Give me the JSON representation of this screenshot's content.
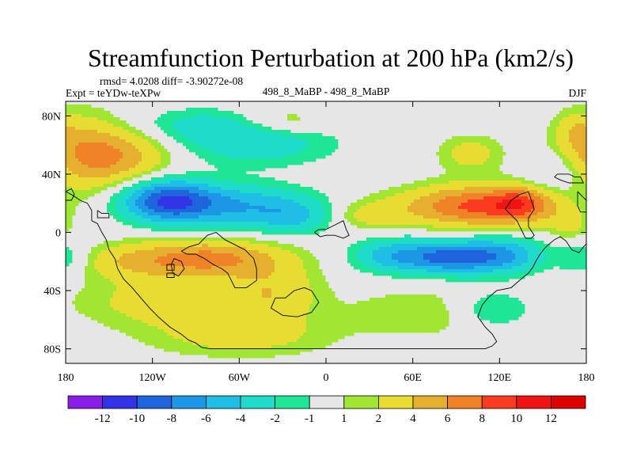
{
  "chart_data": {
    "type": "heatmap",
    "title": "Streamfunction Perturbation at 200 hPa (km2/s)",
    "stats_text": "rmsd= 4.0208 diff= -3.90272e-08",
    "experiment": "Expt = teYDw-teXPw",
    "subtitle": "498_8_MaBP - 498_8_MaBP",
    "season": "DJF",
    "xlabel": "",
    "ylabel": "",
    "x_range": [
      -180,
      180
    ],
    "y_range": [
      -90,
      90
    ],
    "x_ticks": [
      {
        "value": -180,
        "label": "180"
      },
      {
        "value": -120,
        "label": "120W"
      },
      {
        "value": -60,
        "label": "60W"
      },
      {
        "value": 0,
        "label": "0"
      },
      {
        "value": 60,
        "label": "60E"
      },
      {
        "value": 120,
        "label": "120E"
      },
      {
        "value": 180,
        "label": "180"
      }
    ],
    "y_ticks": [
      {
        "value": 80,
        "label": "80N"
      },
      {
        "value": 40,
        "label": "40N"
      },
      {
        "value": 0,
        "label": "0"
      },
      {
        "value": -40,
        "label": "40S"
      },
      {
        "value": -80,
        "label": "80S"
      }
    ],
    "contour_levels": [
      -12,
      -10,
      -8,
      -6,
      -4,
      -2,
      -1,
      1,
      2,
      4,
      6,
      8,
      10,
      12
    ],
    "level_labels": [
      "-12",
      "-10",
      "-8",
      "-6",
      "-4",
      "-2",
      "-1",
      "1",
      "2",
      "4",
      "6",
      "8",
      "10",
      "12"
    ],
    "colors": [
      "#8a1ee6",
      "#3232e6",
      "#1e64dc",
      "#1e96e6",
      "#1ebee6",
      "#1edcc8",
      "#1ee696",
      "#e6e6e6",
      "#a0e632",
      "#e6dc32",
      "#e6af2d",
      "#f08228",
      "#fa3c1e",
      "#f01414",
      "#dc0000"
    ],
    "features": [
      {
        "name": "anticyclone-north-pacific",
        "lon": -148,
        "lat": 52,
        "amp": 5.5,
        "sx": 28,
        "sy": 14
      },
      {
        "name": "ridge-north-pacific",
        "lon": -170,
        "lat": 58,
        "amp": 2.5,
        "sx": 20,
        "sy": 20
      },
      {
        "name": "trough-north-atlantic",
        "lon": -50,
        "lat": 62,
        "amp": -3.5,
        "sx": 38,
        "sy": 11
      },
      {
        "name": "trough-arctic",
        "lon": -90,
        "lat": 74,
        "amp": -2.2,
        "sx": 32,
        "sy": 8
      },
      {
        "name": "ridge-arctic",
        "lon": -30,
        "lat": 76,
        "amp": 2.4,
        "sx": 22,
        "sy": 7
      },
      {
        "name": "trough-north-america",
        "lon": -110,
        "lat": 22,
        "amp": -9.5,
        "sx": 22,
        "sy": 10
      },
      {
        "name": "trough-north-america-east",
        "lon": -60,
        "lat": 18,
        "amp": -5.5,
        "sx": 34,
        "sy": 10
      },
      {
        "name": "trough-north-atlantic-low",
        "lon": -22,
        "lat": 10,
        "amp": -3.2,
        "sx": 18,
        "sy": 8
      },
      {
        "name": "ridge-eurasia",
        "lon": 105,
        "lat": 18,
        "amp": 8.5,
        "sx": 36,
        "sy": 10
      },
      {
        "name": "ridge-east-asia",
        "lon": 135,
        "lat": 20,
        "amp": 4.5,
        "sx": 14,
        "sy": 8
      },
      {
        "name": "ridge-africa",
        "lon": 30,
        "lat": 12,
        "amp": 2.5,
        "sx": 18,
        "sy": 7
      },
      {
        "name": "ridge-siberia",
        "lon": 100,
        "lat": 54,
        "amp": 2.8,
        "sx": 16,
        "sy": 9
      },
      {
        "name": "ridge-north-pacific-east",
        "lon": 172,
        "lat": 70,
        "amp": 2.3,
        "sx": 10,
        "sy": 9
      },
      {
        "name": "trough-west-pacific",
        "lon": 158,
        "lat": 40,
        "amp": -2.0,
        "sx": 14,
        "sy": 10
      },
      {
        "name": "trough-indian-ocean",
        "lon": 85,
        "lat": -17,
        "amp": -9.0,
        "sx": 30,
        "sy": 8
      },
      {
        "name": "trough-indian-ocean-west",
        "lon": 40,
        "lat": -15,
        "amp": -2.5,
        "sx": 16,
        "sy": 8
      },
      {
        "name": "trough-australia",
        "lon": 125,
        "lat": -15,
        "amp": -3.5,
        "sx": 18,
        "sy": 9
      },
      {
        "name": "trough-southern-ocean",
        "lon": 115,
        "lat": -53,
        "amp": -3.0,
        "sx": 20,
        "sy": 9
      },
      {
        "name": "ridge-southern-ocean",
        "lon": 70,
        "lat": -55,
        "amp": 2.0,
        "sx": 40,
        "sy": 12
      },
      {
        "name": "ridge-south-america",
        "lon": -80,
        "lat": -18,
        "amp": 6.5,
        "sx": 34,
        "sy": 9
      },
      {
        "name": "ridge-south-pacific",
        "lon": -135,
        "lat": -20,
        "amp": 3.0,
        "sx": 26,
        "sy": 9
      },
      {
        "name": "ridge-south-pacific-deep",
        "lon": -105,
        "lat": -48,
        "amp": 3.2,
        "sx": 45,
        "sy": 12
      },
      {
        "name": "ridge-south-atlantic",
        "lon": -35,
        "lat": -40,
        "amp": 3.0,
        "sx": 22,
        "sy": 15
      },
      {
        "name": "ridge-antarctic",
        "lon": -60,
        "lat": -72,
        "amp": 2.6,
        "sx": 45,
        "sy": 10
      },
      {
        "name": "trough-east-pacific",
        "lon": 178,
        "lat": -18,
        "amp": -2.4,
        "sx": 12,
        "sy": 8
      },
      {
        "name": "ridge-east-pacific",
        "lon": 168,
        "lat": 5,
        "amp": 2.2,
        "sx": 10,
        "sy": 7
      }
    ]
  },
  "continent_outlines": {
    "north-america": [
      [
        -180,
        28
      ],
      [
        -176,
        26
      ],
      [
        -170,
        22
      ],
      [
        -165,
        20
      ],
      [
        -162,
        15
      ],
      [
        -162,
        8
      ],
      [
        -158,
        6
      ],
      [
        -155,
        0
      ],
      [
        -152,
        -5
      ],
      [
        -150,
        -12
      ],
      [
        -146,
        -18
      ],
      [
        -144,
        -25
      ],
      [
        -140,
        -32
      ],
      [
        -134,
        -38
      ],
      [
        -128,
        -45
      ],
      [
        -122,
        -52
      ],
      [
        -116,
        -58
      ],
      [
        -108,
        -65
      ],
      [
        -100,
        -70
      ],
      [
        -95,
        -74
      ],
      [
        -90,
        -76
      ],
      [
        -86,
        -79
      ],
      [
        -80,
        -80
      ],
      [
        -30,
        -80
      ],
      [
        110,
        -80
      ],
      [
        115,
        -78
      ],
      [
        118,
        -75
      ],
      [
        115,
        -70
      ],
      [
        110,
        -65
      ],
      [
        105,
        -58
      ],
      [
        108,
        -50
      ],
      [
        112,
        -45
      ],
      [
        118,
        -40
      ],
      [
        128,
        -38
      ],
      [
        135,
        -32
      ],
      [
        140,
        -28
      ],
      [
        143,
        -24
      ],
      [
        145,
        -20
      ],
      [
        148,
        -15
      ],
      [
        152,
        -10
      ],
      [
        158,
        -5
      ],
      [
        162,
        -3
      ],
      [
        166,
        -6
      ],
      [
        170,
        -12
      ],
      [
        175,
        -14
      ],
      [
        178,
        -10
      ],
      [
        180,
        -8
      ]
    ],
    "south-america": [
      [
        -100,
        -13
      ],
      [
        -95,
        -10
      ],
      [
        -88,
        -8
      ],
      [
        -82,
        -2
      ],
      [
        -76,
        0
      ],
      [
        -70,
        -5
      ],
      [
        -64,
        -8
      ],
      [
        -56,
        -12
      ],
      [
        -50,
        -18
      ],
      [
        -48,
        -25
      ],
      [
        -48,
        -33
      ],
      [
        -55,
        -38
      ],
      [
        -63,
        -38
      ],
      [
        -68,
        -28
      ],
      [
        -72,
        -25
      ],
      [
        -78,
        -22
      ],
      [
        -84,
        -18
      ],
      [
        -90,
        -15
      ],
      [
        -96,
        -15
      ],
      [
        -100,
        -13
      ]
    ],
    "andes-island": [
      [
        -105,
        -18
      ],
      [
        -100,
        -20
      ],
      [
        -98,
        -25
      ],
      [
        -102,
        -30
      ],
      [
        -106,
        -28
      ],
      [
        -107,
        -22
      ],
      [
        -105,
        -18
      ]
    ],
    "antarctic-peninsula": [
      [
        -35,
        -45
      ],
      [
        -28,
        -45
      ],
      [
        -22,
        -40
      ],
      [
        -15,
        -38
      ],
      [
        -10,
        -40
      ],
      [
        -5,
        -48
      ],
      [
        -10,
        -55
      ],
      [
        -20,
        -58
      ],
      [
        -30,
        -57
      ],
      [
        -38,
        -52
      ],
      [
        -35,
        -45
      ]
    ],
    "small-island-1": [
      [
        -110,
        -22
      ],
      [
        -105,
        -22
      ],
      [
        -105,
        -26
      ],
      [
        -110,
        -26
      ],
      [
        -110,
        -22
      ]
    ],
    "small-island-2": [
      [
        -110,
        -28
      ],
      [
        -105,
        -28
      ],
      [
        -105,
        -31
      ],
      [
        -110,
        -31
      ],
      [
        -110,
        -28
      ]
    ],
    "greenland-block": [
      [
        -158,
        15
      ],
      [
        -155,
        13
      ],
      [
        -150,
        13
      ],
      [
        -150,
        10
      ],
      [
        -158,
        10
      ],
      [
        -158,
        15
      ]
    ],
    "africa-europe": [
      [
        -8,
        0
      ],
      [
        -5,
        2
      ],
      [
        0,
        2
      ],
      [
        4,
        4
      ],
      [
        8,
        6
      ],
      [
        12,
        8
      ],
      [
        14,
        2
      ],
      [
        16,
        -2
      ],
      [
        12,
        -4
      ],
      [
        6,
        -2
      ],
      [
        0,
        -2
      ],
      [
        -4,
        -3
      ],
      [
        -8,
        0
      ]
    ],
    "asia-east": [
      [
        140,
        28
      ],
      [
        142,
        22
      ],
      [
        144,
        16
      ],
      [
        140,
        10
      ],
      [
        140,
        4
      ],
      [
        144,
        -2
      ],
      [
        142,
        -4
      ],
      [
        138,
        -4
      ],
      [
        136,
        0
      ],
      [
        134,
        4
      ],
      [
        132,
        8
      ],
      [
        128,
        12
      ],
      [
        124,
        16
      ],
      [
        128,
        22
      ],
      [
        134,
        26
      ],
      [
        140,
        28
      ]
    ],
    "japan-block": [
      [
        160,
        40
      ],
      [
        168,
        40
      ],
      [
        172,
        38
      ],
      [
        176,
        38
      ],
      [
        178,
        34
      ],
      [
        168,
        34
      ],
      [
        162,
        36
      ],
      [
        158,
        38
      ],
      [
        160,
        40
      ]
    ],
    "east-edge": [
      [
        174,
        28
      ],
      [
        178,
        24
      ],
      [
        180,
        22
      ],
      [
        180,
        14
      ],
      [
        176,
        14
      ],
      [
        174,
        18
      ],
      [
        174,
        24
      ],
      [
        174,
        28
      ]
    ],
    "west-edge": [
      [
        -180,
        28
      ],
      [
        -176,
        30
      ],
      [
        -174,
        26
      ],
      [
        -176,
        22
      ],
      [
        -180,
        22
      ]
    ]
  }
}
